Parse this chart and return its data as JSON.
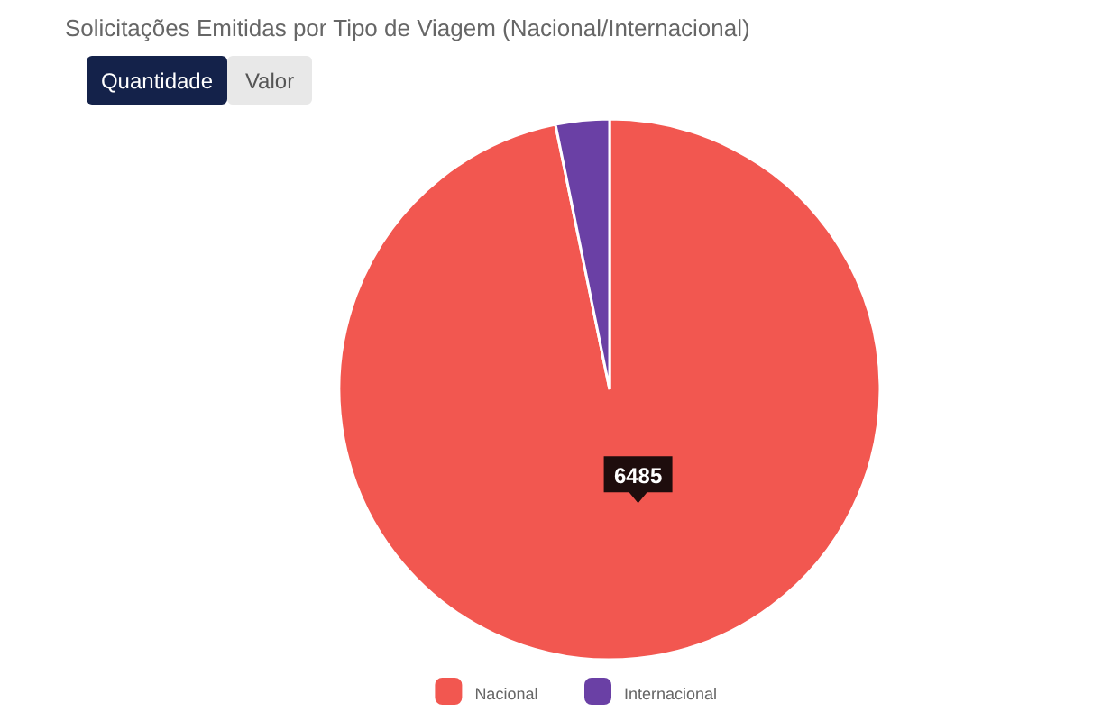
{
  "chart_data": {
    "type": "pie",
    "title": "Solicitações Emitidas por Tipo de Viagem (Nacional/Internacional)",
    "annotations": [
      "Quantidade",
      "Valor"
    ],
    "categories": [
      "Nacional",
      "Internacional"
    ],
    "values": [
      6485,
      215
    ],
    "value_labels": [
      "6485",
      null
    ],
    "colors": [
      "#f25750",
      "#6a40a5"
    ],
    "legend": "bottom"
  }
}
